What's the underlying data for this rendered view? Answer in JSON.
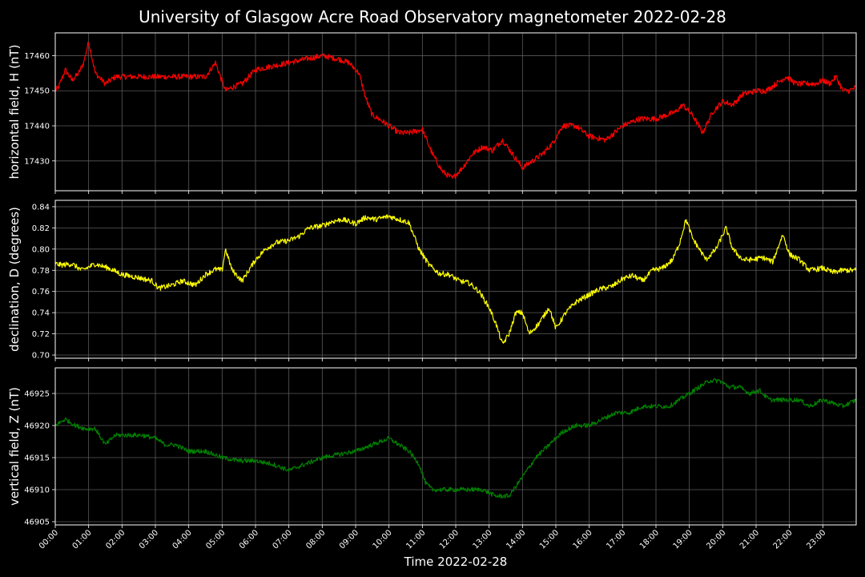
{
  "chart_data": {
    "type": "line",
    "title": "University of Glasgow Acre Road Observatory magnetometer 2022-02-28",
    "xlabel": "Time 2022-02-28",
    "x_ticks": [
      "00:00",
      "01:00",
      "02:00",
      "03:00",
      "04:00",
      "05:00",
      "06:00",
      "07:00",
      "08:00",
      "09:00",
      "10:00",
      "11:00",
      "12:00",
      "13:00",
      "14:00",
      "15:00",
      "16:00",
      "17:00",
      "18:00",
      "19:00",
      "20:00",
      "21:00",
      "22:00",
      "23:00"
    ],
    "xlim": [
      0,
      24
    ],
    "grid": true,
    "background": "#000000",
    "panels": [
      {
        "id": "H",
        "ylabel": "horizontal field, H (nT)",
        "color": "#ff0000",
        "ylim": [
          17421.5,
          17466.5
        ],
        "yticks": [
          17430,
          17440,
          17450,
          17460
        ],
        "ytick_labels": [
          "17430",
          "17440",
          "17450",
          "17460"
        ],
        "noise": 0.8,
        "x": [
          0,
          0.1,
          0.3,
          0.5,
          0.7,
          0.85,
          1.0,
          1.2,
          1.5,
          1.8,
          2.2,
          2.6,
          3.0,
          3.5,
          4.0,
          4.5,
          4.8,
          5.1,
          5.3,
          5.6,
          6.0,
          6.5,
          7.0,
          7.5,
          8.0,
          8.5,
          8.8,
          9.1,
          9.3,
          9.5,
          9.7,
          10.0,
          10.3,
          10.6,
          11.0,
          11.3,
          11.6,
          11.9,
          12.2,
          12.5,
          12.8,
          13.1,
          13.4,
          13.7,
          14.0,
          14.3,
          14.6,
          14.9,
          15.2,
          15.6,
          16.0,
          16.5,
          17.0,
          17.5,
          18.0,
          18.3,
          18.6,
          18.8,
          19.1,
          19.4,
          19.7,
          20.0,
          20.3,
          20.6,
          21.0,
          21.3,
          21.6,
          21.9,
          22.2,
          22.5,
          22.8,
          23.0,
          23.2,
          23.4,
          23.6,
          23.8,
          24.0
        ],
        "values": [
          17450,
          17451,
          17456,
          17453,
          17455,
          17458,
          17464,
          17455,
          17452,
          17454,
          17454,
          17454,
          17454,
          17454,
          17454,
          17454,
          17458,
          17450,
          17451,
          17452,
          17456,
          17457,
          17458,
          17459,
          17460,
          17459,
          17458,
          17455,
          17448,
          17443,
          17442,
          17440,
          17438,
          17438,
          17439,
          17432,
          17427,
          17425,
          17428,
          17432,
          17434,
          17433,
          17436,
          17432,
          17428,
          17430,
          17432,
          17435,
          17440,
          17440,
          17437,
          17436,
          17440,
          17442,
          17442,
          17443,
          17444,
          17446,
          17443,
          17438,
          17444,
          17447,
          17446,
          17449,
          17450,
          17450,
          17452,
          17454,
          17452,
          17452,
          17452,
          17453,
          17452,
          17454,
          17450,
          17450,
          17451
        ]
      },
      {
        "id": "D",
        "ylabel": "declination, D (degrees)",
        "color": "#ffff00",
        "ylim": [
          0.697,
          0.846
        ],
        "yticks": [
          0.7,
          0.72,
          0.74,
          0.76,
          0.78,
          0.8,
          0.82,
          0.84
        ],
        "ytick_labels": [
          "0.70",
          "0.72",
          "0.74",
          "0.76",
          "0.78",
          "0.80",
          "0.82",
          "0.84"
        ],
        "noise": 0.0025,
        "x": [
          0,
          0.2,
          0.5,
          0.8,
          1.2,
          1.6,
          2.0,
          2.5,
          2.9,
          3.1,
          3.5,
          3.8,
          4.2,
          4.5,
          4.8,
          5.0,
          5.1,
          5.3,
          5.6,
          6.0,
          6.3,
          6.6,
          7.0,
          7.3,
          7.6,
          8.0,
          8.3,
          8.6,
          9.0,
          9.3,
          9.6,
          10.0,
          10.3,
          10.6,
          10.9,
          11.2,
          11.5,
          11.8,
          12.1,
          12.4,
          12.7,
          13.0,
          13.2,
          13.4,
          13.6,
          13.8,
          14.0,
          14.2,
          14.5,
          14.8,
          15.0,
          15.3,
          15.6,
          16.0,
          16.3,
          16.7,
          17.0,
          17.3,
          17.6,
          17.9,
          18.2,
          18.5,
          18.7,
          18.9,
          19.1,
          19.3,
          19.5,
          19.8,
          20.1,
          20.3,
          20.6,
          20.9,
          21.2,
          21.5,
          21.8,
          22.0,
          22.3,
          22.6,
          23.0,
          23.3,
          23.6,
          24.0
        ],
        "values": [
          0.786,
          0.785,
          0.786,
          0.78,
          0.786,
          0.782,
          0.776,
          0.773,
          0.77,
          0.763,
          0.766,
          0.77,
          0.766,
          0.776,
          0.781,
          0.78,
          0.8,
          0.78,
          0.77,
          0.79,
          0.8,
          0.806,
          0.808,
          0.812,
          0.82,
          0.822,
          0.826,
          0.828,
          0.824,
          0.83,
          0.828,
          0.831,
          0.828,
          0.825,
          0.8,
          0.785,
          0.777,
          0.776,
          0.77,
          0.768,
          0.76,
          0.745,
          0.73,
          0.71,
          0.72,
          0.74,
          0.74,
          0.72,
          0.73,
          0.745,
          0.725,
          0.74,
          0.75,
          0.757,
          0.762,
          0.765,
          0.772,
          0.775,
          0.77,
          0.78,
          0.782,
          0.79,
          0.805,
          0.828,
          0.81,
          0.8,
          0.79,
          0.8,
          0.82,
          0.8,
          0.79,
          0.79,
          0.792,
          0.788,
          0.814,
          0.795,
          0.79,
          0.78,
          0.782,
          0.778,
          0.78,
          0.78
        ]
      },
      {
        "id": "Z",
        "ylabel": "vertical field, Z (nT)",
        "color": "#008000",
        "ylim": [
          46904.5,
          46929.0
        ],
        "yticks": [
          46905,
          46910,
          46915,
          46920,
          46925
        ],
        "ytick_labels": [
          "46905",
          "46910",
          "46915",
          "46920",
          "46925"
        ],
        "noise": 0.35,
        "x": [
          0,
          0.3,
          0.6,
          0.9,
          1.2,
          1.5,
          1.8,
          2.2,
          2.6,
          3.0,
          3.3,
          3.6,
          4.0,
          4.5,
          5.0,
          5.5,
          6.0,
          6.5,
          7.0,
          7.5,
          8.0,
          8.5,
          9.0,
          9.5,
          10.0,
          10.3,
          10.6,
          10.9,
          11.1,
          11.3,
          11.6,
          12.0,
          12.4,
          12.8,
          13.2,
          13.6,
          14.0,
          14.4,
          14.8,
          15.2,
          15.6,
          16.0,
          16.4,
          16.8,
          17.2,
          17.6,
          18.0,
          18.4,
          18.7,
          19.0,
          19.3,
          19.6,
          19.9,
          20.2,
          20.5,
          20.8,
          21.1,
          21.4,
          21.7,
          22.0,
          22.3,
          22.6,
          23.0,
          23.3,
          23.6,
          24.0
        ],
        "values": [
          46920,
          46921,
          46920,
          46919.5,
          46919.5,
          46917,
          46918.5,
          46918.5,
          46918.5,
          46918,
          46917,
          46917,
          46916,
          46916,
          46915,
          46914.5,
          46914.5,
          46914,
          46913,
          46914,
          46915,
          46915.5,
          46916,
          46917,
          46918,
          46917,
          46916,
          46914,
          46911,
          46910,
          46910,
          46910,
          46910,
          46910,
          46909,
          46909,
          46912,
          46915,
          46917,
          46919,
          46920,
          46920,
          46921,
          46922,
          46922,
          46923,
          46923,
          46923,
          46924,
          46925,
          46926,
          46927,
          46927,
          46926,
          46926,
          46925,
          46925.5,
          46924,
          46924,
          46924,
          46924,
          46923,
          46924,
          46923.5,
          46923,
          46924
        ]
      }
    ]
  }
}
